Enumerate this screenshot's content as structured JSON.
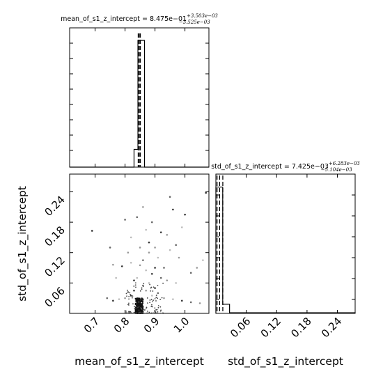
{
  "chart_data": [
    {
      "type": "histogram",
      "panel": "top-left",
      "title": "mean_of_s1_z_intercept = 8.475e−01",
      "title_sup": "+3.503e−03",
      "title_sub": "−3.525e−03",
      "xlim": [
        0.615,
        1.08
      ],
      "bins": [
        {
          "x0": 0.83,
          "x1": 0.843,
          "y": 0.14
        },
        {
          "x0": 0.843,
          "x1": 0.865,
          "y": 1.0
        }
      ],
      "quantile_lines": [
        0.844,
        0.8475,
        0.851
      ],
      "ticks_visible": false
    },
    {
      "type": "scatter",
      "panel": "bottom-left",
      "xlabel": "mean_of_s1_z_intercept",
      "ylabel": "std_of_s1_z_intercept",
      "xlim": [
        0.615,
        1.08
      ],
      "ylim": [
        0.0,
        0.275
      ],
      "xticks": [
        0.7,
        0.8,
        0.9,
        1.0
      ],
      "xtick_labels": [
        "0.7",
        "0.8",
        "0.9",
        "1.0"
      ],
      "yticks": [
        0.06,
        0.12,
        0.18,
        0.24
      ],
      "ytick_labels": [
        "0.06",
        "0.12",
        "0.18",
        "0.24"
      ],
      "points": [
        [
          0.69,
          0.163
        ],
        [
          0.75,
          0.13
        ],
        [
          0.76,
          0.096
        ],
        [
          0.77,
          0.07
        ],
        [
          0.79,
          0.093
        ],
        [
          0.8,
          0.185
        ],
        [
          0.81,
          0.12
        ],
        [
          0.82,
          0.1
        ],
        [
          0.83,
          0.065
        ],
        [
          0.84,
          0.19
        ],
        [
          0.86,
          0.21
        ],
        [
          0.87,
          0.165
        ],
        [
          0.88,
          0.14
        ],
        [
          0.89,
          0.18
        ],
        [
          0.9,
          0.13
        ],
        [
          0.91,
          0.11
        ],
        [
          0.92,
          0.16
        ],
        [
          0.93,
          0.09
        ],
        [
          0.94,
          0.155
        ],
        [
          0.95,
          0.125
        ],
        [
          0.96,
          0.205
        ],
        [
          0.97,
          0.135
        ],
        [
          0.98,
          0.11
        ],
        [
          0.99,
          0.17
        ],
        [
          1.0,
          0.195
        ],
        [
          1.02,
          0.08
        ],
        [
          1.04,
          0.09
        ],
        [
          1.06,
          0.105
        ],
        [
          1.07,
          0.238
        ],
        [
          0.95,
          0.23
        ],
        [
          0.88,
          0.12
        ],
        [
          0.87,
          0.085
        ],
        [
          0.89,
          0.078
        ],
        [
          0.86,
          0.105
        ],
        [
          0.85,
          0.095
        ],
        [
          0.84,
          0.07
        ],
        [
          0.83,
          0.045
        ],
        [
          0.86,
          0.055
        ],
        [
          0.87,
          0.045
        ],
        [
          0.88,
          0.06
        ],
        [
          0.82,
          0.035
        ],
        [
          0.81,
          0.042
        ],
        [
          0.8,
          0.03
        ],
        [
          0.89,
          0.035
        ],
        [
          0.9,
          0.05
        ],
        [
          0.91,
          0.04
        ],
        [
          0.93,
          0.03
        ],
        [
          0.96,
          0.028
        ],
        [
          0.99,
          0.025
        ],
        [
          1.02,
          0.022
        ],
        [
          1.05,
          0.02
        ],
        [
          0.78,
          0.028
        ],
        [
          0.76,
          0.025
        ],
        [
          0.74,
          0.03
        ],
        [
          0.85,
          0.13
        ],
        [
          0.82,
          0.15
        ],
        [
          0.9,
          0.09
        ],
        [
          0.92,
          0.07
        ],
        [
          0.94,
          0.065
        ],
        [
          0.97,
          0.06
        ]
      ],
      "dense_core": {
        "x": [
          0.835,
          0.86
        ],
        "y": [
          0.0,
          0.03
        ]
      }
    },
    {
      "type": "histogram",
      "panel": "bottom-right",
      "title": "std_of_s1_z_intercept = 7.425e−03",
      "title_sup": "+6.283e−03",
      "title_sub": "−5.104e−03",
      "xlabel": "std_of_s1_z_intercept",
      "xlim": [
        0.0,
        0.275
      ],
      "xticks": [
        0.06,
        0.12,
        0.18,
        0.24
      ],
      "xtick_labels": [
        "0.06",
        "0.12",
        "0.18",
        "0.24"
      ],
      "bins": [
        {
          "x0": 0.0,
          "x1": 0.0135,
          "y": 0.97
        },
        {
          "x0": 0.0135,
          "x1": 0.027,
          "y": 0.07
        },
        {
          "x0": 0.027,
          "x1": 0.275,
          "y": 0.005
        }
      ],
      "quantile_lines": [
        0.0023,
        0.0074,
        0.0137
      ],
      "ymax": 1.07
    }
  ]
}
